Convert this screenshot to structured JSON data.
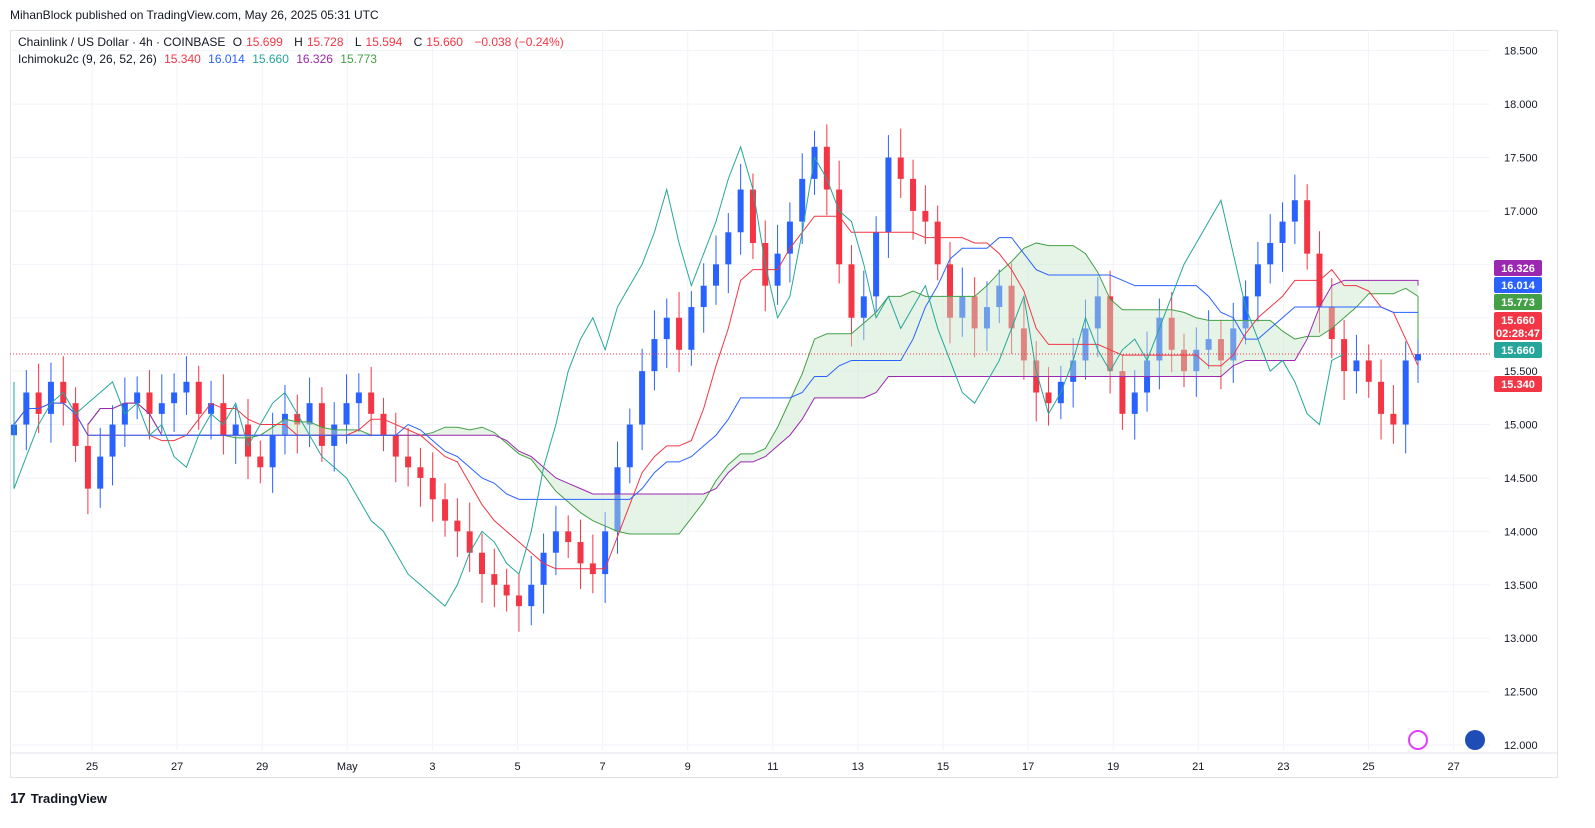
{
  "header": {
    "published": "MihanBlock published on TradingView.com, May 26, 2025 05:31 UTC"
  },
  "legend": {
    "symbol": "Chainlink / US Dollar · 4h · COINBASE",
    "o_label": "O",
    "o": "15.699",
    "h_label": "H",
    "h": "15.728",
    "l_label": "L",
    "l": "15.594",
    "c_label": "C",
    "c": "15.660",
    "change": "−0.038 (−0.24%)",
    "indicator": "Ichimoku2c (9, 26, 52, 26)",
    "ind_values": [
      "15.340",
      "16.014",
      "15.660",
      "16.326",
      "15.773"
    ]
  },
  "footer": {
    "brand": "TradingView",
    "logo_glyph": "17"
  },
  "colors": {
    "up": "#2962ff",
    "down": "#f23645",
    "tenkan": "#f23645",
    "kijun": "#2962ff",
    "chikou": "#26a69a",
    "spanA": "#43a047",
    "spanB": "#9c27b0",
    "cloud": "#c8e6c9"
  },
  "chart_data": {
    "type": "candlestick",
    "ylim": [
      12.0,
      18.6
    ],
    "yticks": [
      12.0,
      12.5,
      13.0,
      13.5,
      14.0,
      14.5,
      15.0,
      15.5,
      16.0,
      16.5,
      17.0,
      17.5,
      18.0,
      18.5
    ],
    "ytick_labels": [
      "12.000",
      "12.500",
      "13.000",
      "13.500",
      "14.000",
      "14.500",
      "15.000",
      "15.500",
      "16.000",
      "16.500",
      "17.000",
      "17.500",
      "18.000",
      "18.500"
    ],
    "xticks": [
      "25",
      "27",
      "29",
      "May",
      "3",
      "5",
      "7",
      "9",
      "11",
      "13",
      "15",
      "17",
      "19",
      "21",
      "23",
      "25",
      "27"
    ],
    "price_line": 15.66,
    "countdown": "02:28:47",
    "badges": [
      {
        "value": "16.326",
        "color": "#9c27b0"
      },
      {
        "value": "16.014",
        "color": "#2962ff"
      },
      {
        "value": "15.773",
        "color": "#43a047"
      },
      {
        "value": "15.660",
        "color": "#f23645"
      },
      {
        "value": "15.660",
        "color": "#26a69a"
      },
      {
        "value": "15.340",
        "color": "#f23645"
      }
    ],
    "closes": [
      15.0,
      15.3,
      15.1,
      15.4,
      15.2,
      14.8,
      14.4,
      14.7,
      15.0,
      15.2,
      15.3,
      15.1,
      15.2,
      15.3,
      15.4,
      15.1,
      15.2,
      14.9,
      15.0,
      14.7,
      14.6,
      14.9,
      15.1,
      15.0,
      15.2,
      14.8,
      15.0,
      15.2,
      15.3,
      15.1,
      14.9,
      14.7,
      14.6,
      14.5,
      14.3,
      14.1,
      14.0,
      13.8,
      13.6,
      13.5,
      13.4,
      13.3,
      13.5,
      13.8,
      14.0,
      13.9,
      13.7,
      13.6,
      14.0,
      14.6,
      15.0,
      15.5,
      15.8,
      16.0,
      15.7,
      16.1,
      16.3,
      16.5,
      16.8,
      17.2,
      16.7,
      16.3,
      16.6,
      16.9,
      17.3,
      17.6,
      17.2,
      16.5,
      16.0,
      16.2,
      16.8,
      17.5,
      17.3,
      17.0,
      16.9,
      16.5,
      16.0,
      16.2,
      15.9,
      16.1,
      16.3,
      15.9,
      15.6,
      15.3,
      15.2,
      15.4,
      15.6,
      15.9,
      16.2,
      15.5,
      15.1,
      15.3,
      15.6,
      16.0,
      15.7,
      15.5,
      15.7,
      15.8,
      15.6,
      15.9,
      16.2,
      16.5,
      16.7,
      16.9,
      17.1,
      16.6,
      16.1,
      15.8,
      15.5,
      15.6,
      15.4,
      15.1,
      15.0,
      15.6,
      15.66
    ]
  }
}
